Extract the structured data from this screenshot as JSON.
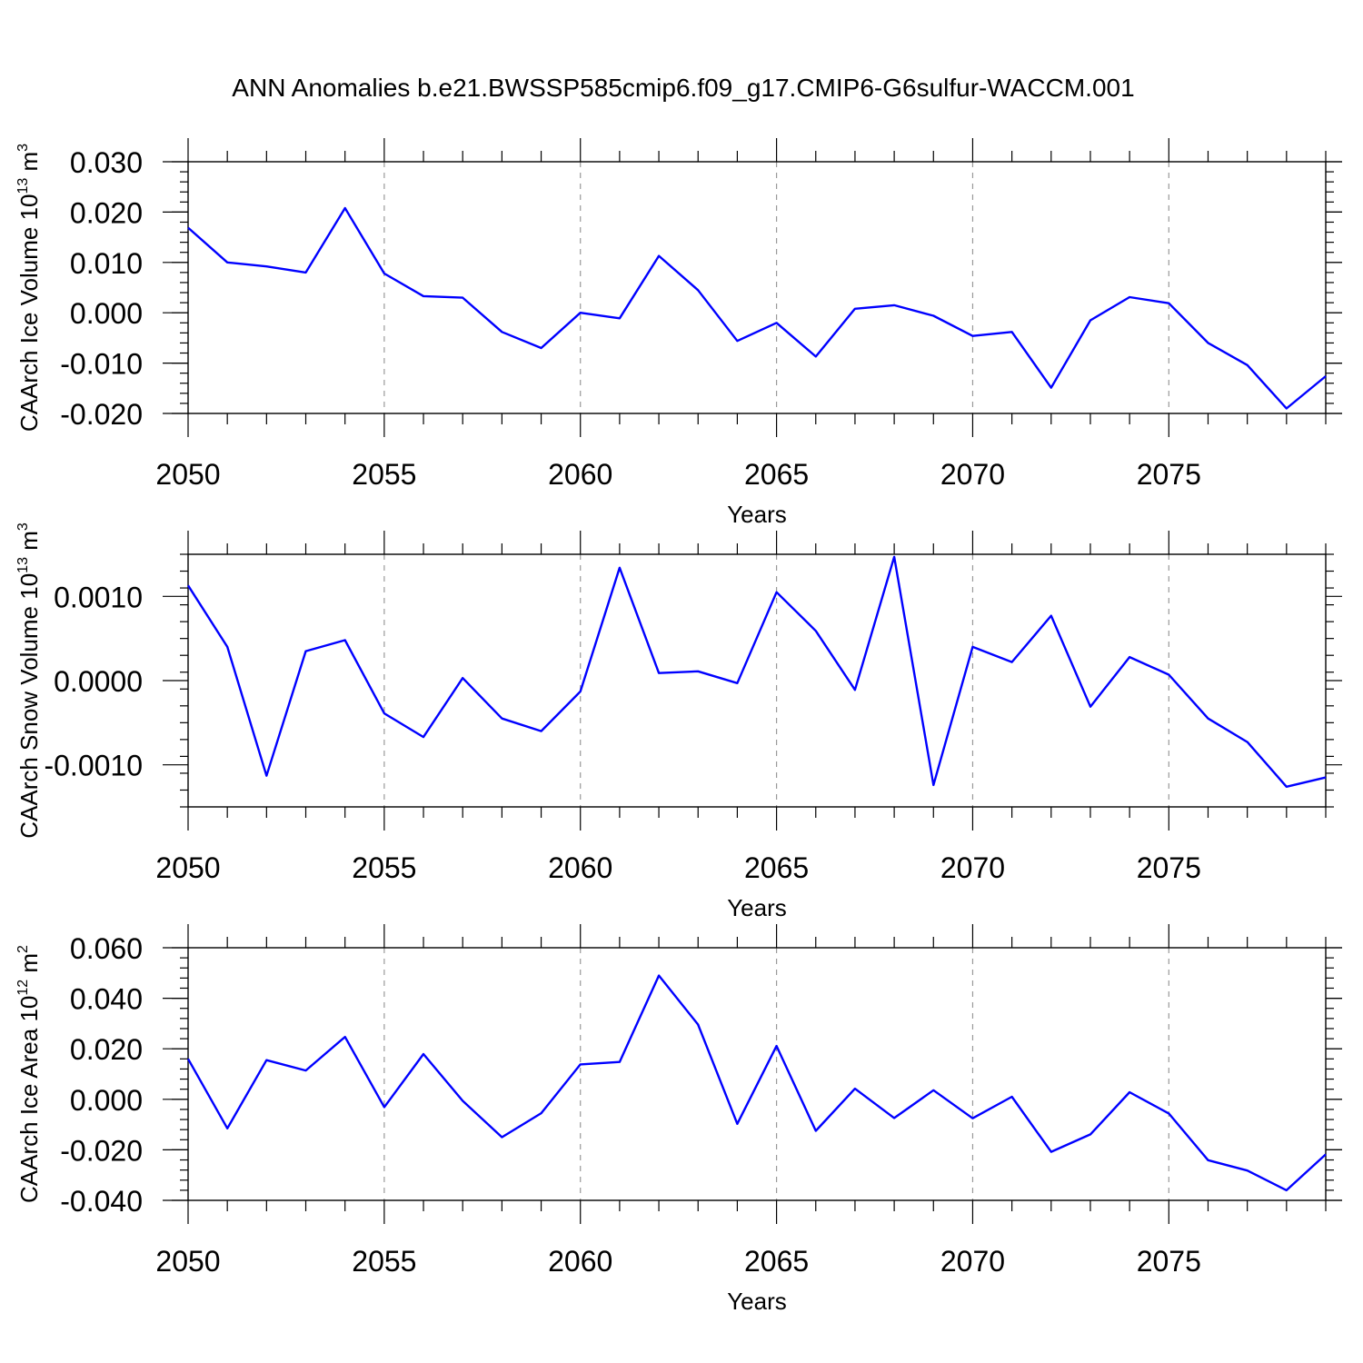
{
  "figure": {
    "title": "ANN Anomalies b.e21.BWSSP585cmip6.f09_g17.CMIP6-G6sulfur-WACCM.001",
    "line_color": "#0000ff"
  },
  "chart_data": [
    {
      "type": "line",
      "title": "",
      "xlabel": "Years",
      "ylabel": {
        "text": "CAArch Ice Volume 10",
        "exp": "13",
        "unit": " m",
        "unit_exp": "3"
      },
      "xlim": [
        2050,
        2079
      ],
      "ylim": [
        -0.02,
        0.03
      ],
      "xticks": [
        2050,
        2055,
        2060,
        2065,
        2070,
        2075
      ],
      "xtick_labels": [
        "2050",
        "2055",
        "2060",
        "2065",
        "2070",
        "2075"
      ],
      "yticks": [
        -0.02,
        -0.01,
        0.0,
        0.01,
        0.02,
        0.03
      ],
      "ytick_labels": [
        "-0.020",
        "-0.010",
        "0.000",
        "0.010",
        "0.020",
        "0.030"
      ],
      "y_minor_step": 0.002,
      "grid": "vertical dashed at major x ticks",
      "x": [
        2050,
        2051,
        2052,
        2053,
        2054,
        2055,
        2056,
        2057,
        2058,
        2059,
        2060,
        2061,
        2062,
        2063,
        2064,
        2065,
        2066,
        2067,
        2068,
        2069,
        2070,
        2071,
        2072,
        2073,
        2074,
        2075,
        2076,
        2077,
        2078,
        2079
      ],
      "series": [
        {
          "values": [
            0.0169,
            0.01,
            0.0092,
            0.008,
            0.0208,
            0.0078,
            0.0033,
            0.003,
            -0.0038,
            -0.007,
            0.0,
            -0.0011,
            0.0113,
            0.0045,
            -0.0056,
            -0.002,
            -0.0087,
            0.0008,
            0.0015,
            -0.0006,
            -0.0046,
            -0.0038,
            -0.0149,
            -0.0015,
            0.0031,
            0.0019,
            -0.006,
            -0.0104,
            -0.019,
            -0.0126
          ]
        }
      ]
    },
    {
      "type": "line",
      "title": "",
      "xlabel": "Years",
      "ylabel": {
        "text": "CAArch Snow Volume 10",
        "exp": "13",
        "unit": " m",
        "unit_exp": "3"
      },
      "xlim": [
        2050,
        2079
      ],
      "ylim": [
        -0.0015,
        0.0015
      ],
      "xticks": [
        2050,
        2055,
        2060,
        2065,
        2070,
        2075
      ],
      "xtick_labels": [
        "2050",
        "2055",
        "2060",
        "2065",
        "2070",
        "2075"
      ],
      "yticks": [
        -0.001,
        0.0,
        0.001
      ],
      "ytick_labels": [
        "-0.0010",
        "0.0000",
        "0.0010"
      ],
      "y_minor_step": 0.0002,
      "grid": "vertical dashed at major x ticks",
      "x": [
        2050,
        2051,
        2052,
        2053,
        2054,
        2055,
        2056,
        2057,
        2058,
        2059,
        2060,
        2061,
        2062,
        2063,
        2064,
        2065,
        2066,
        2067,
        2068,
        2069,
        2070,
        2071,
        2072,
        2073,
        2074,
        2075,
        2076,
        2077,
        2078,
        2079
      ],
      "series": [
        {
          "values": [
            0.00113,
            0.0004,
            -0.00113,
            0.00035,
            0.00048,
            -0.00039,
            -0.00067,
            3e-05,
            -0.00045,
            -0.0006,
            -0.00013,
            0.00134,
            9e-05,
            0.00011,
            -3e-05,
            0.00105,
            0.00059,
            -0.00011,
            0.00147,
            -0.00124,
            0.0004,
            0.00022,
            0.00077,
            -0.00031,
            0.00028,
            7e-05,
            -0.00045,
            -0.00073,
            -0.00126,
            -0.00115
          ]
        }
      ]
    },
    {
      "type": "line",
      "title": "",
      "xlabel": "Years",
      "ylabel": {
        "text": "CAArch Ice Area 10",
        "exp": "12",
        "unit": " m",
        "unit_exp": "2"
      },
      "xlim": [
        2050,
        2079
      ],
      "ylim": [
        -0.04,
        0.06
      ],
      "xticks": [
        2050,
        2055,
        2060,
        2065,
        2070,
        2075
      ],
      "xtick_labels": [
        "2050",
        "2055",
        "2060",
        "2065",
        "2070",
        "2075"
      ],
      "yticks": [
        -0.04,
        -0.02,
        0.0,
        0.02,
        0.04,
        0.06
      ],
      "ytick_labels": [
        "-0.040",
        "-0.020",
        "0.000",
        "0.020",
        "0.040",
        "0.060"
      ],
      "y_minor_step": 0.004,
      "grid": "vertical dashed at major x ticks",
      "x": [
        2050,
        2051,
        2052,
        2053,
        2054,
        2055,
        2056,
        2057,
        2058,
        2059,
        2060,
        2061,
        2062,
        2063,
        2064,
        2065,
        2066,
        2067,
        2068,
        2069,
        2070,
        2071,
        2072,
        2073,
        2074,
        2075,
        2076,
        2077,
        2078,
        2079
      ],
      "series": [
        {
          "values": [
            0.016,
            -0.0115,
            0.0155,
            0.0114,
            0.0247,
            -0.0031,
            0.0179,
            -0.0006,
            -0.015,
            -0.0055,
            0.0138,
            0.0148,
            0.049,
            0.0296,
            -0.0097,
            0.0211,
            -0.0125,
            0.0042,
            -0.0074,
            0.0036,
            -0.0075,
            0.001,
            -0.0208,
            -0.0139,
            0.0028,
            -0.0056,
            -0.0241,
            -0.0282,
            -0.036,
            -0.0218
          ]
        }
      ]
    }
  ]
}
